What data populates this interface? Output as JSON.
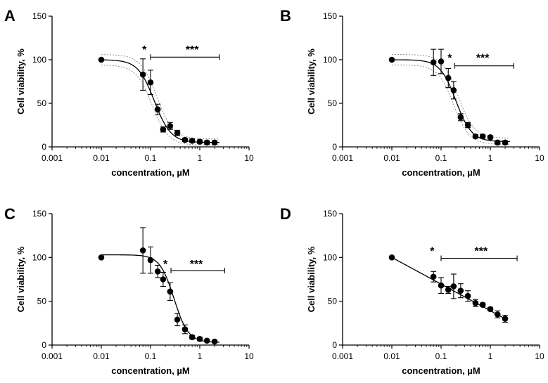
{
  "chart_data": [
    {
      "type": "scatter",
      "panel": "A",
      "xscale": "log",
      "xlim": [
        0.001,
        10
      ],
      "ylim": [
        0,
        150
      ],
      "xticks": [
        "0.001",
        "0.01",
        "0.1",
        "1",
        "10"
      ],
      "yticks": [
        "0",
        "50",
        "100",
        "150"
      ],
      "xlabel": "concentration, µM",
      "ylabel": "Cell viability, %",
      "fit": {
        "kind": "sigmoid",
        "top": 100,
        "bottom": 5,
        "ec50": 0.12,
        "hill": 2.6
      },
      "confidence_band": true,
      "series": [
        {
          "name": "data",
          "x": [
            0.01,
            0.07,
            0.1,
            0.14,
            0.18,
            0.25,
            0.35,
            0.5,
            0.7,
            1.0,
            1.4,
            2.0
          ],
          "y": [
            100,
            83,
            74,
            43,
            20,
            24,
            16,
            8,
            7,
            6,
            5,
            5
          ],
          "err": [
            0,
            18,
            14,
            6,
            3,
            4,
            3,
            2,
            2,
            2,
            2,
            2
          ]
        }
      ],
      "annotations": [
        {
          "text": "*",
          "x": 0.075,
          "y": 112
        },
        {
          "text": "***",
          "x": 0.7,
          "y": 112,
          "bracket_x": [
            0.1,
            2.5
          ],
          "bracket_y": 103
        }
      ]
    },
    {
      "type": "scatter",
      "panel": "B",
      "xscale": "log",
      "xlim": [
        0.001,
        10
      ],
      "ylim": [
        0,
        150
      ],
      "xticks": [
        "0.001",
        "0.01",
        "0.1",
        "1",
        "10"
      ],
      "yticks": [
        "0",
        "50",
        "100",
        "150"
      ],
      "xlabel": "concentration, µM",
      "ylabel": "Cell viability, %",
      "fit": {
        "kind": "sigmoid",
        "top": 100,
        "bottom": 6,
        "ec50": 0.2,
        "hill": 2.7
      },
      "confidence_band": true,
      "series": [
        {
          "name": "data",
          "x": [
            0.01,
            0.07,
            0.1,
            0.14,
            0.18,
            0.25,
            0.35,
            0.5,
            0.7,
            1.0,
            1.4,
            2.0
          ],
          "y": [
            100,
            97,
            98,
            79,
            65,
            34,
            25,
            12,
            12,
            11,
            5,
            5
          ],
          "err": [
            0,
            15,
            14,
            11,
            10,
            4,
            3,
            2,
            2,
            2,
            2,
            2
          ]
        }
      ],
      "annotations": [
        {
          "text": "*",
          "x": 0.15,
          "y": 103
        },
        {
          "text": "***",
          "x": 0.7,
          "y": 103,
          "bracket_x": [
            0.19,
            3.0
          ],
          "bracket_y": 93
        }
      ]
    },
    {
      "type": "scatter",
      "panel": "C",
      "xscale": "log",
      "xlim": [
        0.001,
        10
      ],
      "ylim": [
        0,
        150
      ],
      "xticks": [
        "0.001",
        "0.01",
        "0.1",
        "1",
        "10"
      ],
      "yticks": [
        "0",
        "50",
        "100",
        "150"
      ],
      "xlabel": "concentration, µM",
      "ylabel": "Cell viability, %",
      "fit": {
        "kind": "sigmoid",
        "top": 103,
        "bottom": 3,
        "ec50": 0.3,
        "hill": 3.0
      },
      "confidence_band": false,
      "series": [
        {
          "name": "data",
          "x": [
            0.01,
            0.07,
            0.1,
            0.14,
            0.18,
            0.25,
            0.35,
            0.5,
            0.7,
            1.0,
            1.4,
            2.0
          ],
          "y": [
            100,
            108,
            97,
            84,
            75,
            61,
            29,
            18,
            9,
            7,
            5,
            4
          ],
          "err": [
            0,
            26,
            15,
            7,
            8,
            10,
            7,
            5,
            2,
            2,
            1,
            1
          ]
        }
      ],
      "annotations": [
        {
          "text": "*",
          "x": 0.2,
          "y": 93
        },
        {
          "text": "***",
          "x": 0.85,
          "y": 93,
          "bracket_x": [
            0.26,
            3.2
          ],
          "bracket_y": 85
        }
      ]
    },
    {
      "type": "line",
      "panel": "D",
      "xscale": "log",
      "xlim": [
        0.001,
        10
      ],
      "ylim": [
        0,
        150
      ],
      "xticks": [
        "0.001",
        "0.01",
        "0.1",
        "1",
        "10"
      ],
      "yticks": [
        "0",
        "50",
        "100",
        "150"
      ],
      "xlabel": "concentration, µM",
      "ylabel": "Cell viability, %",
      "fit": {
        "kind": "linear-log",
        "y_at_0.01": 100,
        "y_at_2": 30
      },
      "confidence_band": false,
      "series": [
        {
          "name": "data",
          "x": [
            0.01,
            0.07,
            0.1,
            0.14,
            0.18,
            0.25,
            0.35,
            0.5,
            0.7,
            1.0,
            1.4,
            2.0
          ],
          "y": [
            100,
            78,
            68,
            63,
            67,
            62,
            56,
            48,
            46,
            41,
            35,
            30
          ],
          "err": [
            0,
            6,
            9,
            4,
            14,
            8,
            6,
            4,
            2,
            2,
            4,
            4
          ]
        }
      ],
      "annotations": [
        {
          "text": "*",
          "x": 0.066,
          "y": 108
        },
        {
          "text": "***",
          "x": 0.65,
          "y": 108,
          "bracket_x": [
            0.1,
            3.5
          ],
          "bracket_y": 99
        }
      ]
    }
  ]
}
